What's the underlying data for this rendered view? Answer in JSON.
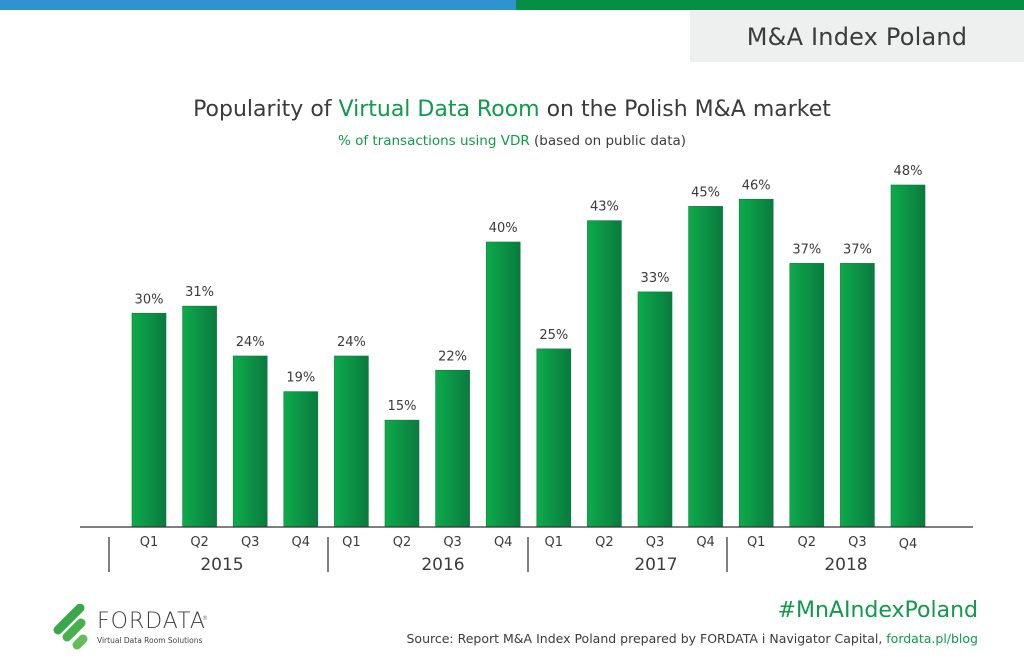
{
  "header": {
    "badge": "M&A Index Poland",
    "title_pre": "Popularity of ",
    "title_highlight": "Virtual Data Room",
    "title_post": " on the Polish M&A market",
    "subtitle_highlight": "% of transactions using VDR",
    "subtitle_post": " (based on public data)"
  },
  "colors": {
    "brand_green": "#0f9a4c",
    "bar_light": "#0dab4b",
    "bar_dark": "#0a7a3f",
    "top_blue": "#2e93cf",
    "top_green": "#058f44"
  },
  "chart_data": {
    "type": "bar",
    "title": "Popularity of Virtual Data Room on the Polish M&A market",
    "subtitle": "% of transactions using VDR (based on public data)",
    "xlabel": "",
    "ylabel": "",
    "ylim": [
      0,
      48
    ],
    "grid": false,
    "value_suffix": "%",
    "categories": [
      "Q1",
      "Q2",
      "Q3",
      "Q4",
      "Q1",
      "Q2",
      "Q3",
      "Q4",
      "Q1",
      "Q2",
      "Q3",
      "Q4",
      "Q1",
      "Q2",
      "Q3",
      "Q4"
    ],
    "groups": [
      {
        "label": "2015",
        "start": 0,
        "count": 4
      },
      {
        "label": "2016",
        "start": 4,
        "count": 4
      },
      {
        "label": "2017",
        "start": 8,
        "count": 4
      },
      {
        "label": "2018",
        "start": 12,
        "count": 4
      }
    ],
    "values": [
      30,
      31,
      24,
      19,
      24,
      15,
      22,
      40,
      25,
      43,
      33,
      45,
      46,
      37,
      37,
      48
    ],
    "labels": [
      "30%",
      "31%",
      "24%",
      "19%",
      "24%",
      "15%",
      "22%",
      "40%",
      "25%",
      "43%",
      "33%",
      "45%",
      "46%",
      "37%",
      "37%",
      "48%"
    ]
  },
  "footer": {
    "hashtag": "#MnAIndexPoland",
    "source_text": "Source: Report M&A Index Poland prepared by FORDATA i Navigator Capital, ",
    "source_link": "fordata.pl/blog",
    "logo_name": "FORDATA",
    "logo_reg": "®",
    "logo_tagline": "Virtual Data Room Solutions"
  }
}
